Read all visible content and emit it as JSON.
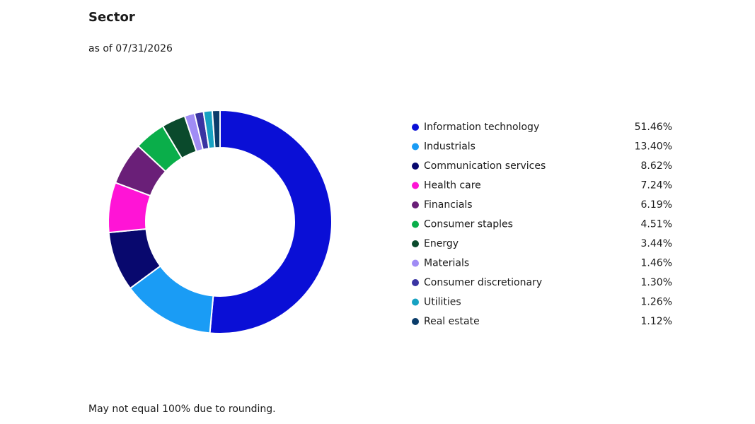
{
  "chart_data": {
    "type": "donut",
    "title": "Sector",
    "subtitle": "as of 07/31/2026",
    "footnote": "May not equal 100% due to rounding.",
    "categories": [
      "Information technology",
      "Industrials",
      "Communication services",
      "Health care",
      "Financials",
      "Consumer staples",
      "Energy",
      "Materials",
      "Consumer discretionary",
      "Utilities",
      "Real estate"
    ],
    "values": [
      51.46,
      13.4,
      8.62,
      7.24,
      6.19,
      4.51,
      3.44,
      1.46,
      1.3,
      1.26,
      1.12
    ],
    "value_labels": [
      "51.46%",
      "13.40%",
      "8.62%",
      "7.24%",
      "6.19%",
      "4.51%",
      "3.44%",
      "1.46%",
      "1.30%",
      "1.26%",
      "1.12%"
    ],
    "colors": [
      "#0a0fd6",
      "#1a9cf5",
      "#08086e",
      "#ff14d6",
      "#6a1f78",
      "#0aae4a",
      "#0a4a2c",
      "#a08cf5",
      "#3a34a2",
      "#17a2c2",
      "#0a3c6a"
    ],
    "legend": "right"
  }
}
